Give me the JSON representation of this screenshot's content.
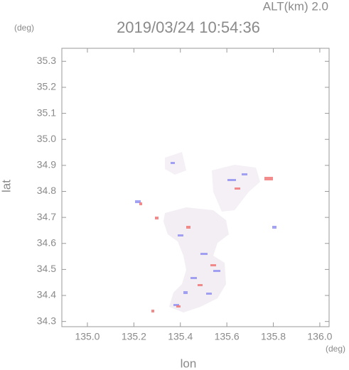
{
  "chart_data": {
    "type": "map",
    "title": "2019/03/24 10:54:36",
    "subtitle": "ALT(km)  2.0",
    "y_unit": "(deg)",
    "x_unit": "(deg)",
    "xlabel": "lon",
    "ylabel": "lat",
    "xlim": [
      134.89,
      136.04
    ],
    "ylim": [
      34.28,
      35.35
    ],
    "xticks": [
      {
        "value": 135,
        "label": "135.0"
      },
      135.2,
      135.4,
      135.6,
      135.8,
      {
        "value": 136,
        "label": "136.0"
      }
    ],
    "yticks": [
      34.3,
      34.4,
      34.5,
      34.6,
      34.7,
      34.8,
      34.9,
      {
        "value": 35,
        "label": "35.0"
      },
      35.1,
      35.2,
      35.3
    ]
  }
}
